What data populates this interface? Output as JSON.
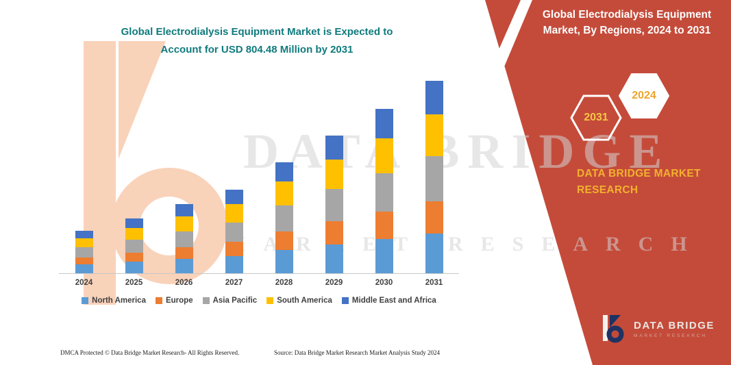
{
  "header_left": {
    "line1": "Global Electrodialysis Equipment Market is Expected to",
    "line2": "Account for USD 804.48 Million by 2031"
  },
  "panel": {
    "title_line1": "Global Electrodialysis Equipment",
    "title_line2": "Market, By Regions, 2024 to 2031",
    "hex_left_year": "2031",
    "hex_right_year": "2024",
    "brand_line1": "DATA BRIDGE MARKET",
    "brand_line2": "RESEARCH"
  },
  "watermark": {
    "line1": "DATA BRIDGE",
    "line2": "MARKET RESEARCH"
  },
  "logo": {
    "title": "DATA BRIDGE",
    "subtitle": "MARKET RESEARCH"
  },
  "footer": {
    "dmca": "DMCA Protected © Data Bridge Market Research-  All Rights Reserved.",
    "source": "Source: Data Bridge Market Research  Market Analysis Study 2024"
  },
  "colors": {
    "teal": "#0f7a7d",
    "panel_red": "#c44b3a",
    "brand_yellow": "#f2b12e",
    "hex_2031_text": "#f6c644",
    "hex_2024_text": "#eda42c",
    "axis": "#c8c8c8",
    "peach_logo": "#f9d2ba"
  },
  "chart_data": {
    "type": "bar",
    "stacked": true,
    "title": "Global Electrodialysis Equipment Market is Expected to Account for USD 804.48 Million by 2031",
    "unit": "USD Million",
    "categories": [
      "2024",
      "2025",
      "2026",
      "2027",
      "2028",
      "2029",
      "2030",
      "2031"
    ],
    "series": [
      {
        "name": "North America",
        "color": "#5b9bd5",
        "values": [
          37,
          48,
          60,
          73,
          97,
          120,
          143,
          167
        ]
      },
      {
        "name": "Europe",
        "color": "#ed7d31",
        "values": [
          30,
          39,
          48,
          59,
          78,
          97,
          115,
          135
        ]
      },
      {
        "name": "Asia Pacific",
        "color": "#a6a6a6",
        "values": [
          42,
          54,
          67,
          81,
          108,
          134,
          160,
          187
        ]
      },
      {
        "name": "South America",
        "color": "#ffc000",
        "values": [
          38,
          49,
          62,
          75,
          100,
          124,
          147,
          174
        ]
      },
      {
        "name": "Middle East and Africa",
        "color": "#4472c4",
        "values": [
          32,
          40,
          51,
          61,
          81,
          102,
          121,
          141.48
        ]
      }
    ],
    "totals": [
      179,
      230,
      288,
      349,
      464,
      577,
      686,
      804.48
    ],
    "xlabel": "",
    "ylabel": "",
    "ylim": [
      0,
      850
    ],
    "grid": false,
    "legend_position": "bottom"
  }
}
